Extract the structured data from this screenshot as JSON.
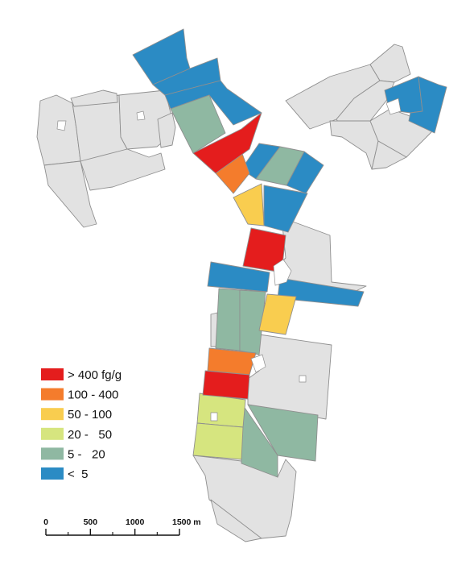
{
  "colors": {
    "class_gt400": "#e41d1d",
    "class_100_400": "#f47c2c",
    "class_50_100": "#f9cd4f",
    "class_20_50": "#d6e57f",
    "class_5_20": "#8fb8a2",
    "class_lt5": "#2b8bc4",
    "no_data": "#e2e2e2",
    "outline": "#8f8f8f"
  },
  "legend": {
    "items": [
      {
        "key": "class_gt400",
        "label": "> 400 fg/g"
      },
      {
        "key": "class_100_400",
        "label": "100 - 400"
      },
      {
        "key": "class_50_100",
        "label": "50 - 100"
      },
      {
        "key": "class_20_50",
        "label": "20 -   50"
      },
      {
        "key": "class_5_20",
        "label": "5 -   20"
      },
      {
        "key": "class_lt5",
        "label": "<  5"
      }
    ]
  },
  "scale_bar": {
    "ticks": [
      {
        "value": 0,
        "label": "0"
      },
      {
        "value": 500,
        "label": "500"
      },
      {
        "value": 1000,
        "label": "1000"
      },
      {
        "value": 1500,
        "label": "1500 m"
      }
    ]
  }
}
